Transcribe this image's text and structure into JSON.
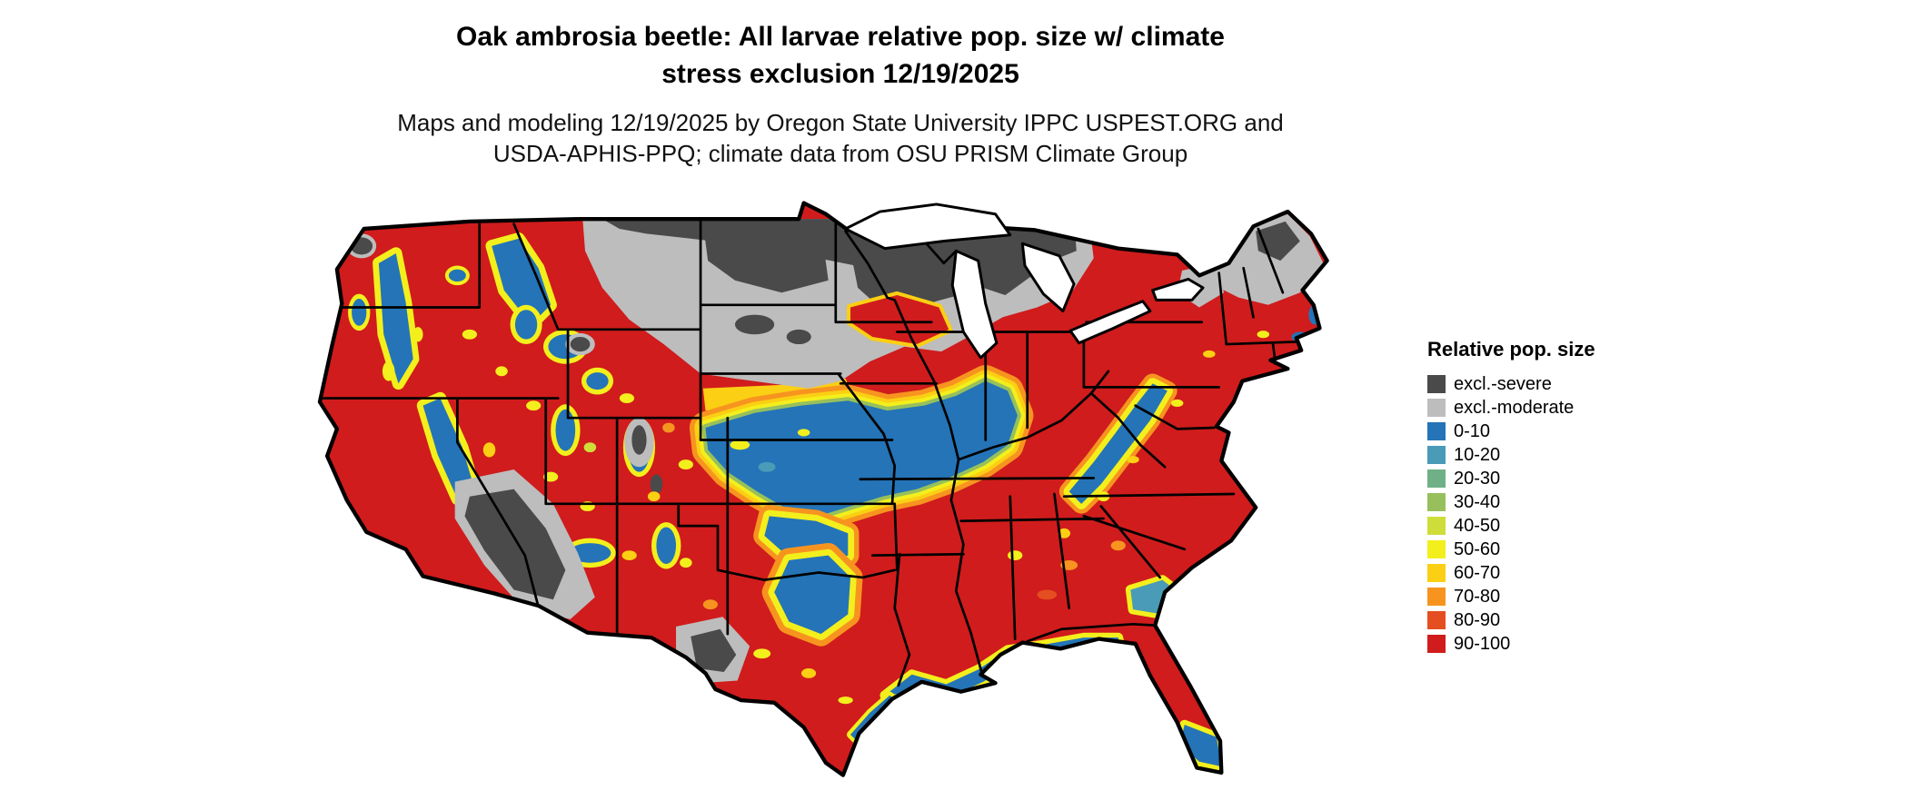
{
  "page": {
    "background": "#ffffff"
  },
  "title": {
    "line1": "Oak ambrosia beetle: All larvae relative pop. size w/ climate",
    "line2": "stress exclusion 12/19/2025"
  },
  "subtitle": {
    "line1": "Maps and modeling 12/19/2025 by Oregon State University IPPC USPEST.ORG and",
    "line2": "USDA-APHIS-PPQ; climate data from OSU PRISM Climate Group"
  },
  "map": {
    "area_depicted": "Contiguous United States",
    "style": "raster choropleth with black state boundaries",
    "outline_color": "#000000",
    "water_color": "#ffffff"
  },
  "legend": {
    "title": "Relative pop. size",
    "items": [
      {
        "label": "excl.-severe",
        "color": "#4a4a4a"
      },
      {
        "label": "excl.-moderate",
        "color": "#bdbdbd"
      },
      {
        "label": "0-10",
        "color": "#2474b7"
      },
      {
        "label": "10-20",
        "color": "#4a9bb8"
      },
      {
        "label": "20-30",
        "color": "#6fb087"
      },
      {
        "label": "30-40",
        "color": "#97c05c"
      },
      {
        "label": "40-50",
        "color": "#cfdd3a"
      },
      {
        "label": "50-60",
        "color": "#f3ef1d"
      },
      {
        "label": "60-70",
        "color": "#fbcf13"
      },
      {
        "label": "70-80",
        "color": "#f79420"
      },
      {
        "label": "80-90",
        "color": "#e54e20"
      },
      {
        "label": "90-100",
        "color": "#d01c1c"
      }
    ]
  }
}
